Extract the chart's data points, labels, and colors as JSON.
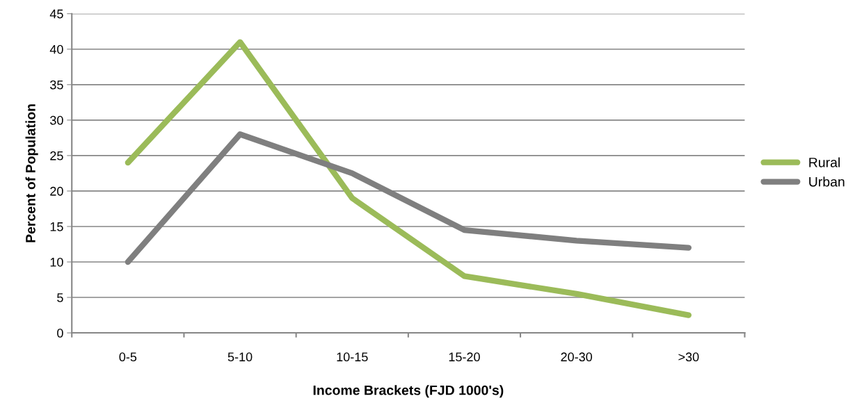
{
  "chart_data": {
    "type": "line",
    "xlabel": "Income Brackets (FJD 1000's)",
    "ylabel": "Percent of Population",
    "categories": [
      "0-5",
      "5-10",
      "10-15",
      "15-20",
      "20-30",
      ">30"
    ],
    "series": [
      {
        "name": "Rural",
        "color": "#9bbb59",
        "values": [
          24,
          41,
          19,
          8,
          5.5,
          2.5
        ]
      },
      {
        "name": "Urban",
        "color": "#7f7f7f",
        "values": [
          10,
          28,
          22.5,
          14.5,
          13,
          12
        ]
      }
    ],
    "ylim": [
      0,
      45
    ],
    "yticks": [
      0,
      5,
      10,
      15,
      20,
      25,
      30,
      35,
      40,
      45
    ],
    "grid": "y",
    "legend": "right",
    "marker": "none",
    "line_style": "solid"
  }
}
